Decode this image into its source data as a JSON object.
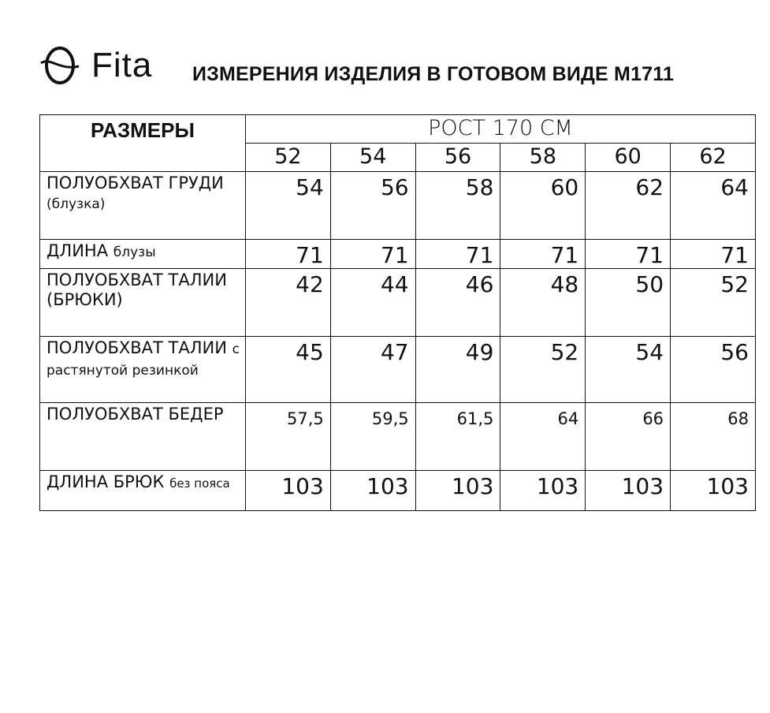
{
  "logo": {
    "text": "Fita",
    "icon": "fita-theta-logo-icon"
  },
  "title": "ИЗМЕРЕНИЯ ИЗДЕЛИЯ В ГОТОВОМ ВИДЕ М1711",
  "table": {
    "sizes_header": "РАЗМЕРЫ",
    "height_header": "РОСТ 170 СМ",
    "sizes": [
      "52",
      "54",
      "56",
      "58",
      "60",
      "62"
    ],
    "rows": [
      {
        "label_main": "ПОЛУОБХВАТ ГРУДИ ",
        "label_small": "(блузка)",
        "label_xs": "",
        "values": [
          "54",
          "56",
          "58",
          "60",
          "62",
          "64"
        ],
        "h": 86
      },
      {
        "label_main": "ДЛИНА ",
        "label_small": "блузы",
        "label_xs": "",
        "values": [
          "71",
          "71",
          "71",
          "71",
          "71",
          "71"
        ],
        "h": 35
      },
      {
        "label_main": "ПОЛУОБХВАТ ТАЛИИ (БРЮКИ)",
        "label_small": "",
        "label_xs": "",
        "values": [
          "42",
          "44",
          "46",
          "48",
          "50",
          "52"
        ],
        "h": 86
      },
      {
        "label_main": "ПОЛУОБХВАТ ТАЛИИ ",
        "label_small": "с растянутой резинкой",
        "label_xs": "",
        "values": [
          "45",
          "47",
          "49",
          "52",
          "54",
          "56"
        ],
        "h": 84
      },
      {
        "label_main": "ПОЛУОБХВАТ БЕДЕР",
        "label_small": "",
        "label_xs": "",
        "values": [
          "57,5",
          "59,5",
          "61,5",
          "64",
          "66",
          "68"
        ],
        "h": 86,
        "small_values": true
      },
      {
        "label_main": "ДЛИНА БРЮК ",
        "label_small": "",
        "label_xs": "без пояса",
        "values": [
          "103",
          "103",
          "103",
          "103",
          "103",
          "103"
        ],
        "h": 51
      }
    ]
  }
}
